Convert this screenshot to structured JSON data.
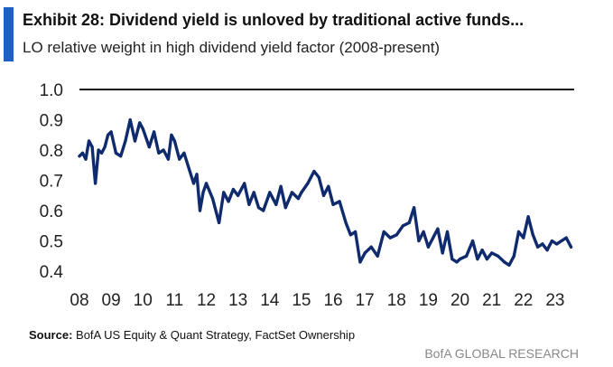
{
  "header": {
    "title": "Exhibit 28: Dividend yield is unloved by traditional active funds...",
    "subtitle": "LO relative weight in high dividend yield factor (2008-present)"
  },
  "footer": {
    "source_label": "Source:",
    "source_text": "BofA US Equity & Quant Strategy, FactSet Ownership",
    "brand": "BofA GLOBAL RESEARCH"
  },
  "colors": {
    "accent": "#1f5fc8",
    "line": "#0f2b6e",
    "reference_line": "#111111"
  },
  "chart_data": {
    "type": "line",
    "title": "Exhibit 28: Dividend yield is unloved by traditional active funds...",
    "subtitle": "LO relative weight in high dividend yield factor (2008-present)",
    "xlabel": "",
    "ylabel": "",
    "xlim": [
      2008,
      2023.6
    ],
    "ylim": [
      0.4,
      1.0
    ],
    "x_ticks": [
      2008,
      2009,
      2010,
      2011,
      2012,
      2013,
      2014,
      2015,
      2016,
      2017,
      2018,
      2019,
      2020,
      2021,
      2022,
      2023
    ],
    "x_tick_labels": [
      "08",
      "09",
      "10",
      "11",
      "12",
      "13",
      "14",
      "15",
      "16",
      "17",
      "18",
      "19",
      "20",
      "21",
      "22",
      "23"
    ],
    "y_ticks": [
      0.4,
      0.5,
      0.6,
      0.7,
      0.8,
      0.9,
      1.0
    ],
    "y_tick_labels": [
      "0.4",
      "0.5",
      "0.6",
      "0.7",
      "0.8",
      "0.9",
      "1.0"
    ],
    "reference_line": 1.0,
    "grid": false,
    "legend": "none",
    "series": [
      {
        "x": [
          2008.0,
          2008.1,
          2008.2,
          2008.3,
          2008.4,
          2008.5,
          2008.6,
          2008.7,
          2008.8,
          2008.9,
          2009.0,
          2009.15,
          2009.3,
          2009.45,
          2009.6,
          2009.75,
          2009.9,
          2010.0,
          2010.2,
          2010.35,
          2010.5,
          2010.65,
          2010.8,
          2010.9,
          2011.0,
          2011.15,
          2011.3,
          2011.45,
          2011.6,
          2011.7,
          2011.8,
          2011.9,
          2012.0,
          2012.2,
          2012.4,
          2012.55,
          2012.7,
          2012.85,
          2013.0,
          2013.2,
          2013.35,
          2013.5,
          2013.65,
          2013.8,
          2014.0,
          2014.2,
          2014.35,
          2014.5,
          2014.7,
          2014.9,
          2015.0,
          2015.2,
          2015.4,
          2015.55,
          2015.7,
          2015.85,
          2016.0,
          2016.2,
          2016.4,
          2016.55,
          2016.7,
          2016.85,
          2017.0,
          2017.2,
          2017.4,
          2017.6,
          2017.8,
          2018.0,
          2018.2,
          2018.4,
          2018.55,
          2018.7,
          2018.85,
          2019.0,
          2019.15,
          2019.3,
          2019.45,
          2019.6,
          2019.75,
          2019.9,
          2020.0,
          2020.2,
          2020.4,
          2020.55,
          2020.7,
          2020.85,
          2021.0,
          2021.2,
          2021.4,
          2021.55,
          2021.7,
          2021.85,
          2022.0,
          2022.15,
          2022.3,
          2022.45,
          2022.6,
          2022.75,
          2022.9,
          2023.05,
          2023.2,
          2023.35,
          2023.5
        ],
        "y": [
          0.78,
          0.79,
          0.77,
          0.83,
          0.81,
          0.69,
          0.8,
          0.79,
          0.81,
          0.85,
          0.86,
          0.79,
          0.78,
          0.83,
          0.9,
          0.83,
          0.89,
          0.87,
          0.81,
          0.86,
          0.79,
          0.8,
          0.77,
          0.85,
          0.83,
          0.77,
          0.79,
          0.74,
          0.69,
          0.72,
          0.6,
          0.66,
          0.69,
          0.64,
          0.56,
          0.66,
          0.63,
          0.67,
          0.65,
          0.69,
          0.62,
          0.66,
          0.61,
          0.6,
          0.66,
          0.62,
          0.68,
          0.61,
          0.66,
          0.64,
          0.66,
          0.69,
          0.73,
          0.71,
          0.65,
          0.68,
          0.62,
          0.63,
          0.56,
          0.52,
          0.53,
          0.43,
          0.46,
          0.48,
          0.45,
          0.53,
          0.51,
          0.52,
          0.55,
          0.56,
          0.61,
          0.5,
          0.53,
          0.48,
          0.51,
          0.54,
          0.46,
          0.53,
          0.44,
          0.43,
          0.44,
          0.45,
          0.5,
          0.44,
          0.47,
          0.44,
          0.46,
          0.45,
          0.43,
          0.42,
          0.45,
          0.53,
          0.51,
          0.58,
          0.52,
          0.48,
          0.49,
          0.47,
          0.5,
          0.49,
          0.5,
          0.51,
          0.48
        ]
      }
    ]
  }
}
